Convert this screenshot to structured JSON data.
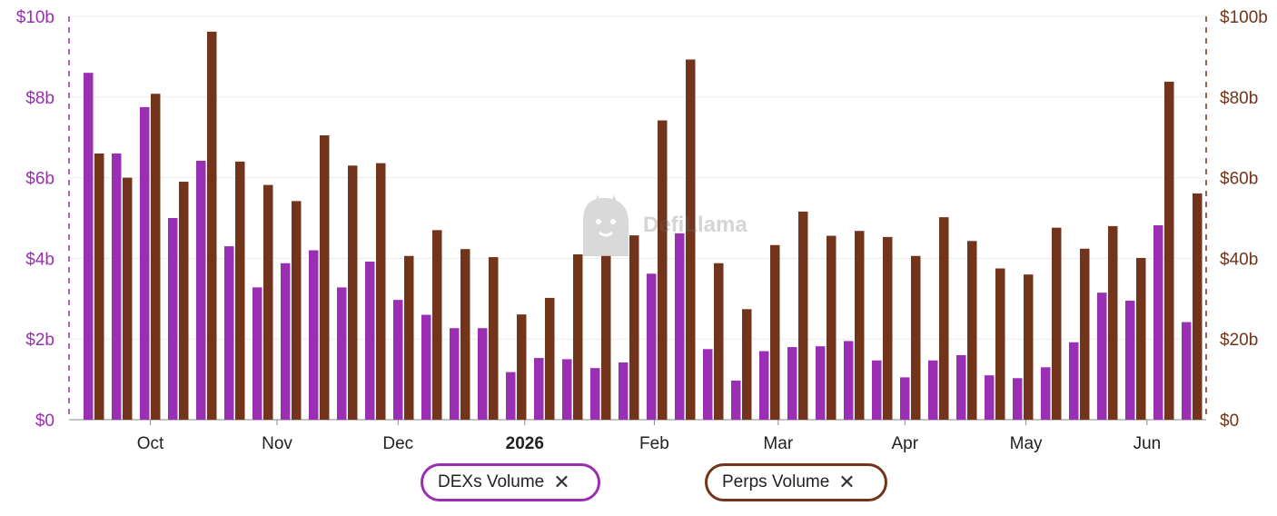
{
  "colors": {
    "dex": "#9b2fb4",
    "perp": "#73341c",
    "grid": "#ececec",
    "axis_left_text": "#9b2fb4",
    "axis_right_text": "#73341c"
  },
  "watermark": {
    "text": "DefiLlama",
    "icon": "llama-logo-icon"
  },
  "legend": {
    "dex_label": "DEXs Volume",
    "perp_label": "Perps Volume",
    "close_icon": "close-icon"
  },
  "chart_data": {
    "type": "bar",
    "grid": true,
    "x_ticks": [
      "Oct",
      "Nov",
      "Dec",
      "2026",
      "Feb",
      "Mar",
      "Apr",
      "May",
      "Jun"
    ],
    "x_tick_weeks": [
      2.5,
      7,
      11.3,
      15.8,
      20.4,
      24.8,
      29.3,
      33.6,
      37.9
    ],
    "y_left": {
      "ylim": [
        0,
        10
      ],
      "ticks": [
        "$0",
        "$2b",
        "$4b",
        "$6b",
        "$8b",
        "$10b"
      ],
      "unit": "billion USD"
    },
    "y_right": {
      "ylim": [
        0,
        100
      ],
      "ticks": [
        "$0",
        "$20b",
        "$40b",
        "$60b",
        "$80b",
        "$100b"
      ],
      "unit": "billion USD"
    },
    "series": [
      {
        "name": "DEXs Volume",
        "axis": "left",
        "values": [
          8.6,
          6.6,
          7.75,
          5.0,
          6.42,
          4.3,
          3.28,
          3.88,
          4.2,
          3.28,
          3.92,
          2.97,
          2.6,
          2.27,
          2.27,
          1.18,
          1.53,
          1.5,
          1.28,
          1.42,
          3.62,
          4.62,
          1.75,
          0.97,
          1.7,
          1.8,
          1.82,
          1.95,
          1.47,
          1.05,
          1.47,
          1.6,
          1.1,
          1.03,
          1.3,
          1.92,
          3.15,
          2.95,
          4.82,
          2.42
        ]
      },
      {
        "name": "Perps Volume",
        "axis": "right",
        "values": [
          66,
          60,
          80.8,
          59,
          96.2,
          64,
          58.2,
          54.2,
          70.5,
          63,
          63.6,
          40.6,
          47,
          42.3,
          40.3,
          26.1,
          30.2,
          41,
          40.6,
          45.7,
          74.2,
          89.3,
          38.8,
          27.4,
          43.3,
          51.6,
          45.6,
          46.8,
          45.3,
          40.6,
          50.2,
          44.3,
          37.5,
          36,
          47.6,
          42.4,
          48,
          40.1,
          83.8,
          56.1
        ]
      }
    ]
  }
}
